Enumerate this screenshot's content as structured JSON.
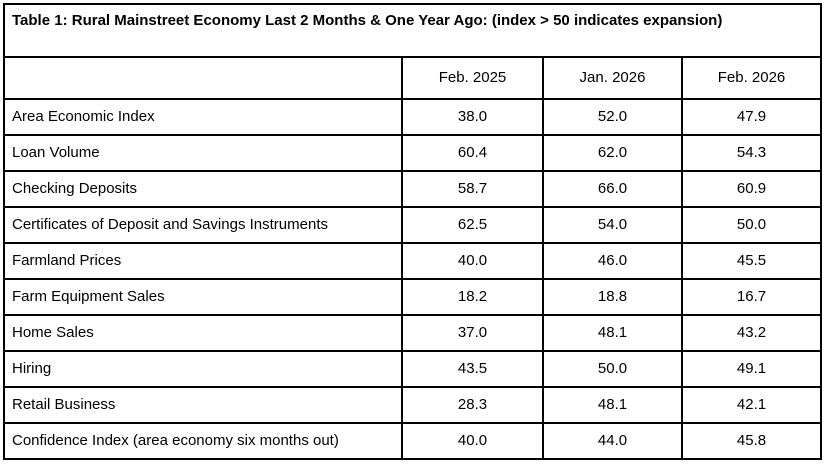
{
  "chart_data": {
    "type": "table",
    "title": "Table 1: Rural Mainstreet Economy Last 2 Months & One Year Ago: (index > 50 indicates expansion)",
    "columns": [
      "Feb. 2025",
      "Jan. 2026",
      "Feb. 2026"
    ],
    "rows": [
      {
        "label": "Area Economic Index",
        "values": [
          "38.0",
          "52.0",
          "47.9"
        ]
      },
      {
        "label": "Loan Volume",
        "values": [
          "60.4",
          "62.0",
          "54.3"
        ]
      },
      {
        "label": "Checking Deposits",
        "values": [
          "58.7",
          "66.0",
          "60.9"
        ]
      },
      {
        "label": "Certificates of Deposit and Savings Instruments",
        "values": [
          "62.5",
          "54.0",
          "50.0"
        ]
      },
      {
        "label": "Farmland Prices",
        "values": [
          "40.0",
          "46.0",
          "45.5"
        ]
      },
      {
        "label": "Farm Equipment Sales",
        "values": [
          "18.2",
          "18.8",
          "16.7"
        ]
      },
      {
        "label": "Home Sales",
        "values": [
          "37.0",
          "48.1",
          "43.2"
        ]
      },
      {
        "label": "Hiring",
        "values": [
          "43.5",
          "50.0",
          "49.1"
        ]
      },
      {
        "label": "Retail Business",
        "values": [
          "28.3",
          "48.1",
          "42.1"
        ]
      },
      {
        "label": "Confidence Index (area economy six months out)",
        "values": [
          "40.0",
          "44.0",
          "45.8"
        ]
      }
    ],
    "layout": {
      "border_color": "#000000",
      "background": "#ffffff",
      "text_color": "#000000",
      "value_alignment": "center",
      "label_alignment": "left"
    }
  }
}
